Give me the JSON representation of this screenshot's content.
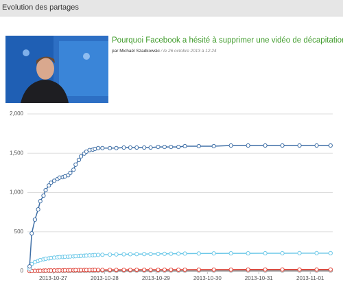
{
  "header": {
    "title": "Evolution des partages"
  },
  "article": {
    "title": "Pourquoi Facebook a hésité à supprimer une vidéo de décapitation",
    "author": "par Michaël Szadkowski",
    "date": "/ le 26 octobre 2013 à 12:24"
  },
  "chart_data": {
    "type": "line",
    "x": [
      "2013-10-26T13:00",
      "2013-10-26T14:00",
      "2013-10-26T15:30",
      "2013-10-26T17:00",
      "2013-10-26T18:00",
      "2013-10-26T19:30",
      "2013-10-26T20:30",
      "2013-10-26T22:00",
      "2013-10-26T23:00",
      "2013-10-27T00:30",
      "2013-10-27T02:00",
      "2013-10-27T03:00",
      "2013-10-27T04:30",
      "2013-10-27T05:30",
      "2013-10-27T07:00",
      "2013-10-27T08:00",
      "2013-10-27T09:30",
      "2013-10-27T10:30",
      "2013-10-27T12:00",
      "2013-10-27T13:00",
      "2013-10-27T14:30",
      "2013-10-27T15:30",
      "2013-10-27T17:00",
      "2013-10-27T18:30",
      "2013-10-27T19:30",
      "2013-10-27T21:00",
      "2013-10-27T23:00",
      "2013-10-28T02:30",
      "2013-10-28T05:30",
      "2013-10-28T09:00",
      "2013-10-28T12:00",
      "2013-10-28T15:00",
      "2013-10-28T18:30",
      "2013-10-28T21:30",
      "2013-10-29T01:00",
      "2013-10-29T04:00",
      "2013-10-29T07:00",
      "2013-10-29T10:30",
      "2013-10-29T13:30",
      "2013-10-29T20:00",
      "2013-10-30T03:00",
      "2013-10-30T11:00",
      "2013-10-30T19:00",
      "2013-10-31T03:00",
      "2013-10-31T11:00",
      "2013-10-31T19:00",
      "2013-11-01T03:00",
      "2013-11-01T09:30"
    ],
    "series": [
      {
        "color": "#3f6fa6",
        "values": [
          60,
          480,
          655,
          785,
          890,
          960,
          1030,
          1090,
          1125,
          1150,
          1170,
          1190,
          1195,
          1205,
          1220,
          1250,
          1290,
          1355,
          1415,
          1460,
          1495,
          1520,
          1540,
          1545,
          1555,
          1565,
          1565,
          1565,
          1565,
          1572,
          1572,
          1572,
          1572,
          1572,
          1580,
          1580,
          1580,
          1580,
          1590,
          1590,
          1590,
          1598,
          1598,
          1598,
          1598,
          1598,
          1598,
          1598
        ]
      },
      {
        "color": "#6cc8e8",
        "values": [
          30,
          90,
          115,
          130,
          140,
          150,
          157,
          162,
          167,
          172,
          175,
          178,
          180,
          182,
          184,
          186,
          188,
          190,
          192,
          194,
          196,
          198,
          200,
          202,
          204,
          206,
          208,
          210,
          212,
          214,
          215,
          216,
          217,
          218,
          219,
          220,
          221,
          222,
          223,
          224,
          225,
          226,
          226,
          227,
          227,
          228,
          228,
          228
        ]
      },
      {
        "color": "#e0453a",
        "values": [
          0,
          2,
          3,
          4,
          5,
          6,
          7,
          8,
          8,
          9,
          9,
          10,
          10,
          11,
          11,
          12,
          12,
          13,
          13,
          13,
          14,
          14,
          14,
          15,
          15,
          15,
          15,
          16,
          16,
          16,
          16,
          17,
          17,
          17,
          17,
          18,
          18,
          18,
          18,
          19,
          19,
          19,
          20,
          20,
          20,
          20,
          20,
          20
        ]
      },
      {
        "color": "#999999",
        "values": [
          0,
          1,
          1,
          2,
          2,
          2,
          3,
          3,
          3,
          3,
          4,
          4,
          4,
          4,
          4,
          4,
          4,
          4,
          4,
          4,
          5,
          5,
          5,
          5,
          5,
          5,
          5,
          5,
          5,
          5,
          6,
          6,
          6,
          6,
          6,
          6,
          6,
          6,
          6,
          6,
          7,
          7,
          7,
          7,
          7,
          7,
          7,
          7
        ]
      }
    ],
    "xlim": [
      "2013-10-26T12:00",
      "2013-11-01T10:30"
    ],
    "xticks": [
      "2013-10-27",
      "2013-10-28",
      "2013-10-29",
      "2013-10-30",
      "2013-10-31",
      "2013-11-01"
    ],
    "ylim": [
      0,
      2000
    ],
    "yticks": [
      0,
      500,
      {
        "value": 1000,
        "label": "1,000"
      },
      {
        "value": 1500,
        "label": "1,500"
      },
      {
        "value": 2000,
        "label": "2,000"
      }
    ],
    "grid": true
  }
}
